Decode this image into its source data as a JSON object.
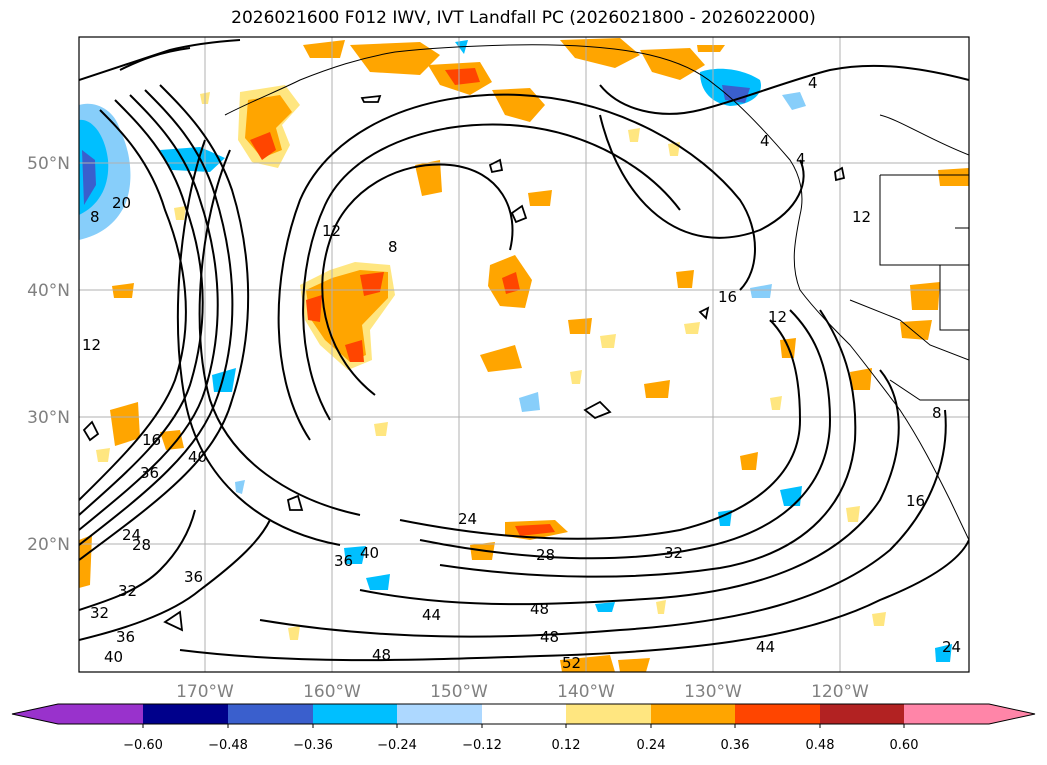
{
  "title": "2026021600 F012 IWV, IVT Landfall PC (2026021800 - 2026022000)",
  "map": {
    "lat_labels": [
      "50°N",
      "40°N",
      "30°N",
      "20°N"
    ],
    "lon_labels": [
      "170°W",
      "160°W",
      "150°W",
      "140°W",
      "130°W",
      "120°W"
    ],
    "contour_labels": [
      "8",
      "20",
      "12",
      "8",
      "4",
      "4",
      "4",
      "12",
      "16",
      "12",
      "12",
      "16",
      "36",
      "40",
      "24",
      "28",
      "32",
      "36",
      "40",
      "24",
      "28",
      "32",
      "44",
      "48",
      "48",
      "52",
      "44",
      "24",
      "16",
      "8",
      "36",
      "32",
      "36",
      "40",
      "48"
    ]
  },
  "colorbar": {
    "tick_labels": [
      "−0.60",
      "−0.48",
      "−0.36",
      "−0.24",
      "−0.12",
      "0.12",
      "0.24",
      "0.36",
      "0.48",
      "0.60"
    ],
    "colors": [
      "#9932cc",
      "#00008b",
      "#3a5fcd",
      "#00bfff",
      "#add8ff",
      "#ffffff",
      "#ffe680",
      "#ffa500",
      "#ff4500",
      "#b22222",
      "#ff85a8"
    ]
  }
}
